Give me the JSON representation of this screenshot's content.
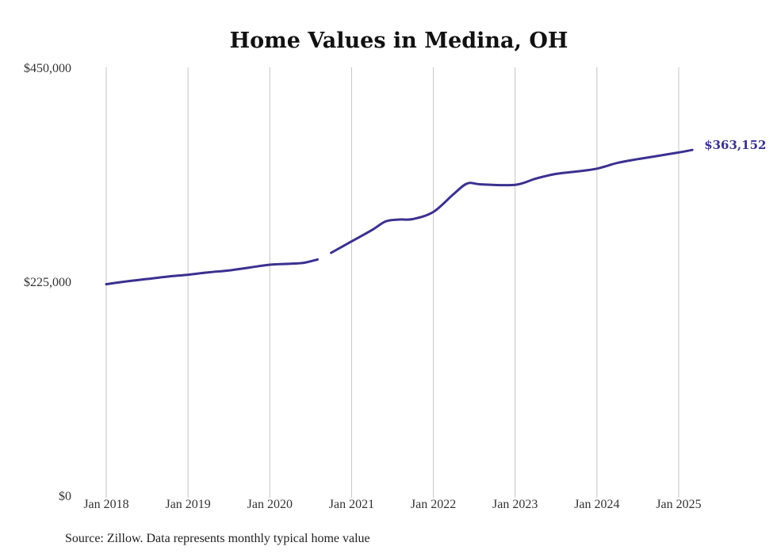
{
  "chart_data": {
    "type": "line",
    "title": "Home Values in Medina, OH",
    "xlabel": "",
    "ylabel": "",
    "ylim": [
      0,
      450000
    ],
    "y_ticks": [
      {
        "value": 0,
        "label": "$0"
      },
      {
        "value": 225000,
        "label": "$225,000"
      },
      {
        "value": 450000,
        "label": "$450,000"
      }
    ],
    "x_range": [
      "2018-01",
      "2025-03"
    ],
    "x_ticks": [
      {
        "date": "2018-01",
        "label": "Jan 2018"
      },
      {
        "date": "2019-01",
        "label": "Jan 2019"
      },
      {
        "date": "2020-01",
        "label": "Jan 2020"
      },
      {
        "date": "2021-01",
        "label": "Jan 2021"
      },
      {
        "date": "2022-01",
        "label": "Jan 2022"
      },
      {
        "date": "2023-01",
        "label": "Jan 2023"
      },
      {
        "date": "2024-01",
        "label": "Jan 2024"
      },
      {
        "date": "2025-01",
        "label": "Jan 2025"
      }
    ],
    "grid": "vertical",
    "series": [
      {
        "color": "#3a3190",
        "segments": [
          [
            {
              "x": "2018-01",
              "y": 222000
            },
            {
              "x": "2018-04",
              "y": 225000
            },
            {
              "x": "2018-07",
              "y": 227500
            },
            {
              "x": "2018-10",
              "y": 230000
            },
            {
              "x": "2019-01",
              "y": 232000
            },
            {
              "x": "2019-04",
              "y": 234500
            },
            {
              "x": "2019-07",
              "y": 236500
            },
            {
              "x": "2019-10",
              "y": 239500
            },
            {
              "x": "2020-01",
              "y": 242500
            },
            {
              "x": "2020-04",
              "y": 243500
            },
            {
              "x": "2020-06",
              "y": 244500
            },
            {
              "x": "2020-08",
              "y": 248000
            }
          ],
          [
            {
              "x": "2020-10",
              "y": 255000
            },
            {
              "x": "2021-01",
              "y": 267000
            },
            {
              "x": "2021-04",
              "y": 279000
            },
            {
              "x": "2021-06",
              "y": 288000
            },
            {
              "x": "2021-08",
              "y": 290000
            },
            {
              "x": "2021-10",
              "y": 290500
            },
            {
              "x": "2022-01",
              "y": 298000
            },
            {
              "x": "2022-04",
              "y": 317000
            },
            {
              "x": "2022-06",
              "y": 328000
            },
            {
              "x": "2022-08",
              "y": 327000
            },
            {
              "x": "2023-01",
              "y": 326500
            },
            {
              "x": "2023-04",
              "y": 333000
            },
            {
              "x": "2023-07",
              "y": 338000
            },
            {
              "x": "2023-10",
              "y": 340500
            },
            {
              "x": "2024-01",
              "y": 343500
            },
            {
              "x": "2024-04",
              "y": 349500
            },
            {
              "x": "2024-07",
              "y": 353500
            },
            {
              "x": "2024-10",
              "y": 357000
            },
            {
              "x": "2025-01",
              "y": 360500
            },
            {
              "x": "2025-03",
              "y": 363152
            }
          ]
        ]
      }
    ],
    "end_label": "$363,152",
    "source": "Source: Zillow. Data represents monthly typical home value"
  }
}
